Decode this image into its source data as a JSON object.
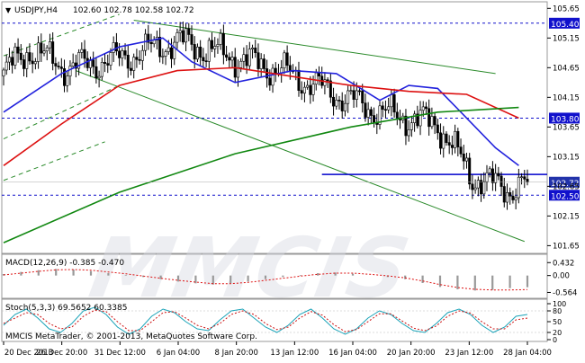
{
  "header": {
    "symbol_label": "USDJPY,H4",
    "ohlc_label": "102.60 102.78 102.58 102.72",
    "arrow_glyph": "▼"
  },
  "footer": {
    "copyright": "MMCIS MetaTrader, © 2001-2013, MetaQuotes Software Corp."
  },
  "watermark": {
    "text": "MMCIS"
  },
  "chart_data": [
    {
      "type": "candlestick",
      "title": "USDJPY,H4",
      "ylim": [
        101.55,
        105.7
      ],
      "yticks": [
        "105.65",
        "105.15",
        "104.65",
        "104.15",
        "103.65",
        "103.15",
        "102.65",
        "102.15",
        "101.65"
      ],
      "xticks": [
        "20 Dec 2013",
        "26 Dec 20:00",
        "31 Dec 12:00",
        "6 Jan 04:00",
        "8 Jan 20:00",
        "13 Jan 12:00",
        "16 Jan 04:00",
        "20 Jan 20:00",
        "23 Jan 12:00",
        "28 Jan 04:00"
      ],
      "grid": false,
      "closes": [
        104.55,
        104.95,
        104.65,
        104.8,
        105.1,
        104.85,
        104.6,
        104.3,
        103.9,
        103.7,
        102.8,
        102.6,
        102.72
      ],
      "close_index": [
        0,
        9,
        22,
        40,
        60,
        78,
        96,
        110,
        130,
        150,
        162,
        175,
        181
      ],
      "candle_count": 182,
      "highlighted_levels": [
        {
          "label": "105.40",
          "value": 105.4,
          "color": "#1111cc"
        },
        {
          "label": "103.80",
          "value": 103.8,
          "color": "#1111cc"
        },
        {
          "label": "102.50",
          "value": 102.5,
          "color": "#1111cc"
        }
      ],
      "current_price": {
        "label": "102.72",
        "value": 102.72,
        "color": "#2233aa"
      },
      "support_line": {
        "value": 102.85,
        "color": "#0000cc"
      },
      "series": [
        {
          "role": "fast-ma",
          "color": "#2222dd",
          "points": [
            [
              0,
              103.9
            ],
            [
              20,
              104.55
            ],
            [
              40,
              105.0
            ],
            [
              55,
              105.15
            ],
            [
              65,
              104.75
            ],
            [
              80,
              104.4
            ],
            [
              100,
              104.6
            ],
            [
              115,
              104.55
            ],
            [
              130,
              104.1
            ],
            [
              140,
              104.35
            ],
            [
              150,
              104.3
            ],
            [
              160,
              103.8
            ],
            [
              170,
              103.3
            ],
            [
              178,
              103.0
            ]
          ]
        },
        {
          "role": "mid-ma",
          "color": "#dd1111",
          "points": [
            [
              0,
              103.0
            ],
            [
              20,
              103.7
            ],
            [
              40,
              104.35
            ],
            [
              60,
              104.6
            ],
            [
              80,
              104.65
            ],
            [
              100,
              104.5
            ],
            [
              120,
              104.35
            ],
            [
              140,
              104.25
            ],
            [
              160,
              104.2
            ],
            [
              178,
              103.8
            ]
          ]
        },
        {
          "role": "slow-ma",
          "color": "#118811",
          "points": [
            [
              0,
              101.7
            ],
            [
              40,
              102.55
            ],
            [
              80,
              103.2
            ],
            [
              120,
              103.65
            ],
            [
              150,
              103.9
            ],
            [
              178,
              103.98
            ]
          ]
        }
      ]
    },
    {
      "type": "macd",
      "label": "MACD(12,26,9) -0.385 -0.470",
      "yticks": [
        "0.432",
        "0.00",
        "-0.564"
      ],
      "ylim": [
        -0.7,
        0.5
      ],
      "histogram": [
        0.05,
        0.12,
        0.18,
        0.22,
        0.2,
        0.15,
        0.08,
        0.02,
        -0.05,
        -0.12,
        -0.2,
        -0.26,
        -0.3,
        -0.26,
        -0.2,
        -0.12,
        -0.05,
        0.02,
        0.08,
        0.1,
        0.06,
        0.0,
        -0.05,
        -0.12,
        -0.25,
        -0.38,
        -0.46,
        -0.5,
        -0.48,
        -0.42,
        -0.39
      ],
      "signal": [
        0.02,
        0.08,
        0.14,
        0.19,
        0.2,
        0.18,
        0.12,
        0.06,
        -0.02,
        -0.09,
        -0.16,
        -0.22,
        -0.27,
        -0.27,
        -0.23,
        -0.16,
        -0.09,
        -0.02,
        0.04,
        0.08,
        0.08,
        0.04,
        -0.01,
        -0.08,
        -0.18,
        -0.3,
        -0.4,
        -0.46,
        -0.48,
        -0.48,
        -0.47
      ]
    },
    {
      "type": "stochastic",
      "label": "Stoch(5,3,3) 69.5652 60.3385",
      "yticks": [
        "100",
        "80",
        "50",
        "20",
        "0"
      ],
      "ylim": [
        0,
        100
      ],
      "main": [
        40,
        70,
        85,
        60,
        30,
        20,
        45,
        80,
        90,
        70,
        35,
        15,
        30,
        65,
        85,
        75,
        50,
        30,
        25,
        55,
        80,
        85,
        60,
        35,
        20,
        40,
        70,
        85,
        60,
        30,
        15,
        30,
        60,
        80,
        70,
        45,
        25,
        20,
        45,
        75,
        85,
        70,
        40,
        20,
        35,
        65,
        70
      ],
      "signal": [
        45,
        60,
        75,
        70,
        45,
        30,
        35,
        65,
        82,
        78,
        50,
        25,
        25,
        50,
        75,
        78,
        60,
        40,
        30,
        45,
        70,
        80,
        70,
        45,
        28,
        35,
        60,
        78,
        68,
        42,
        22,
        28,
        50,
        72,
        72,
        52,
        32,
        25,
        38,
        65,
        80,
        74,
        50,
        30,
        30,
        55,
        60
      ],
      "levels": [
        80,
        20
      ]
    }
  ]
}
